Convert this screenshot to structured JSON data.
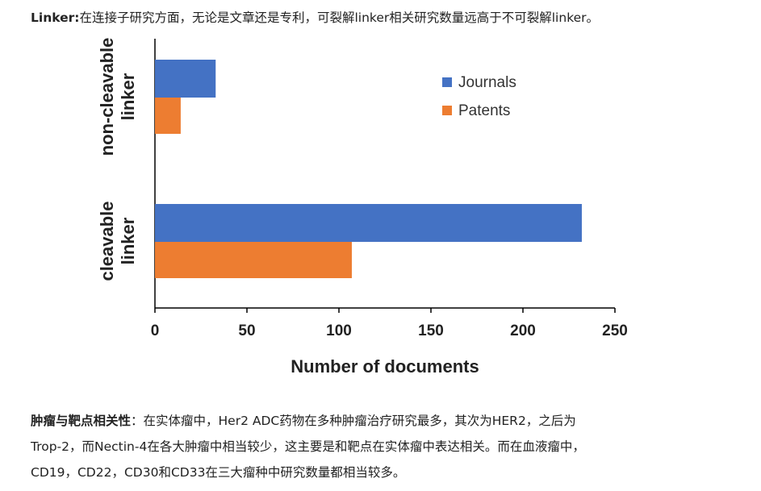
{
  "intro": {
    "heading": "Linker:",
    "text": "在连接子研究方面，无论是文章还是专利，可裂解linker相关研究数量远高于不可裂解linker。"
  },
  "conclusion": {
    "heading": "肿瘤与靶点相关性",
    "text_line1": "：在实体瘤中，Her2 ADC药物在多种肿瘤治疗研究最多，其次为HER2，之后为",
    "text_line2": "Trop-2，而Nectin-4在各大肿瘤中相当较少，这主要是和靶点在实体瘤中表达相关。而在血液瘤中，",
    "text_line3": "CD19，CD22，CD30和CD33在三大瘤种中研究数量都相当较多。"
  },
  "chart_data": {
    "type": "bar",
    "orientation": "horizontal",
    "categories": [
      [
        "non-cleavable",
        "linker"
      ],
      [
        "cleavable",
        "linker"
      ]
    ],
    "series": [
      {
        "name": "Journals",
        "color": "#4472C4",
        "values": [
          33,
          232
        ]
      },
      {
        "name": "Patents",
        "color": "#ED7D31",
        "values": [
          14,
          107
        ]
      }
    ],
    "xlabel": "Number of documents",
    "ylabel": "",
    "xlim": [
      0,
      250
    ],
    "xticks": [
      0,
      50,
      100,
      150,
      200,
      250
    ],
    "grid": false,
    "legend_position": "top-right"
  }
}
